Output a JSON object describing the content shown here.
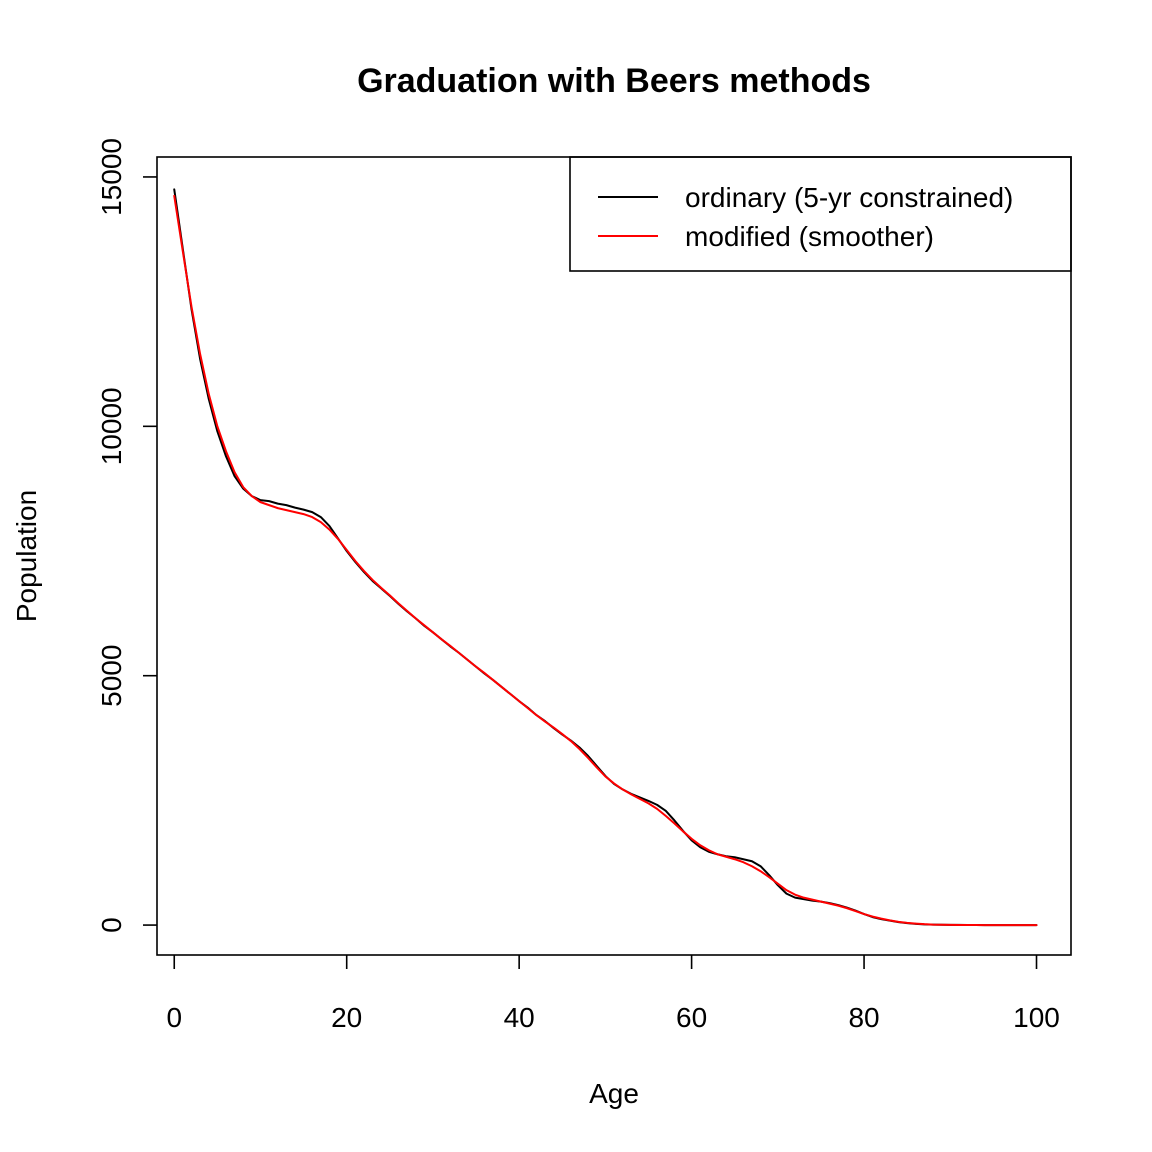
{
  "chart_data": {
    "type": "line",
    "title": "Graduation with Beers methods",
    "xlabel": "Age",
    "ylabel": "Population",
    "xlim": [
      -2,
      104
    ],
    "ylim": [
      -600,
      15400
    ],
    "xticks": [
      0,
      20,
      40,
      60,
      80,
      100
    ],
    "yticks": [
      0,
      5000,
      10000,
      15000
    ],
    "grid": false,
    "legend_position": "top-right",
    "series": [
      {
        "name": "ordinary (5-yr constrained)",
        "color": "#000000",
        "x": [
          0,
          1,
          2,
          3,
          4,
          5,
          6,
          7,
          8,
          9,
          10,
          11,
          12,
          13,
          14,
          15,
          16,
          17,
          18,
          19,
          20,
          21,
          22,
          23,
          24,
          25,
          26,
          27,
          28,
          29,
          30,
          31,
          32,
          33,
          34,
          35,
          36,
          37,
          38,
          39,
          40,
          41,
          42,
          43,
          44,
          45,
          46,
          47,
          48,
          49,
          50,
          51,
          52,
          53,
          54,
          55,
          56,
          57,
          58,
          59,
          60,
          61,
          62,
          63,
          64,
          65,
          66,
          67,
          68,
          69,
          70,
          71,
          72,
          73,
          74,
          75,
          76,
          77,
          78,
          79,
          80,
          81,
          82,
          83,
          84,
          85,
          86,
          87,
          88,
          89,
          90,
          91,
          92,
          93,
          94,
          95,
          96,
          97,
          98,
          99,
          100
        ],
        "values": [
          14750,
          13550,
          12350,
          11350,
          10550,
          9900,
          9400,
          9000,
          8750,
          8600,
          8520,
          8500,
          8450,
          8420,
          8370,
          8330,
          8280,
          8180,
          8000,
          7750,
          7500,
          7280,
          7080,
          6900,
          6750,
          6600,
          6440,
          6290,
          6150,
          6000,
          5870,
          5730,
          5590,
          5460,
          5320,
          5180,
          5040,
          4910,
          4770,
          4630,
          4490,
          4360,
          4210,
          4090,
          3950,
          3820,
          3700,
          3560,
          3390,
          3190,
          2990,
          2830,
          2720,
          2630,
          2560,
          2490,
          2410,
          2290,
          2100,
          1890,
          1700,
          1560,
          1470,
          1420,
          1380,
          1360,
          1320,
          1280,
          1180,
          1000,
          800,
          630,
          550,
          520,
          490,
          470,
          440,
          400,
          350,
          290,
          220,
          160,
          120,
          90,
          60,
          40,
          25,
          15,
          10,
          7,
          5,
          3,
          2,
          1,
          0,
          0,
          0,
          0,
          0,
          0,
          0
        ]
      },
      {
        "name": "modified (smoother)",
        "color": "#ff0000",
        "x": [
          0,
          1,
          2,
          3,
          4,
          5,
          6,
          7,
          8,
          9,
          10,
          11,
          12,
          13,
          14,
          15,
          16,
          17,
          18,
          19,
          20,
          21,
          22,
          23,
          24,
          25,
          26,
          27,
          28,
          29,
          30,
          31,
          32,
          33,
          34,
          35,
          36,
          37,
          38,
          39,
          40,
          41,
          42,
          43,
          44,
          45,
          46,
          47,
          48,
          49,
          50,
          51,
          52,
          53,
          54,
          55,
          56,
          57,
          58,
          59,
          60,
          61,
          62,
          63,
          64,
          65,
          66,
          67,
          68,
          69,
          70,
          71,
          72,
          73,
          74,
          75,
          76,
          77,
          78,
          79,
          80,
          81,
          82,
          83,
          84,
          85,
          86,
          87,
          88,
          89,
          90,
          91,
          92,
          93,
          94,
          95,
          96,
          97,
          98,
          99,
          100
        ],
        "values": [
          14620,
          13500,
          12400,
          11450,
          10650,
          10000,
          9500,
          9080,
          8780,
          8600,
          8480,
          8420,
          8360,
          8320,
          8280,
          8240,
          8180,
          8080,
          7930,
          7740,
          7520,
          7300,
          7100,
          6920,
          6760,
          6610,
          6450,
          6300,
          6150,
          6010,
          5870,
          5730,
          5600,
          5460,
          5320,
          5180,
          5050,
          4910,
          4770,
          4630,
          4490,
          4350,
          4210,
          4080,
          3960,
          3830,
          3690,
          3530,
          3350,
          3160,
          2980,
          2840,
          2720,
          2620,
          2530,
          2440,
          2330,
          2190,
          2040,
          1880,
          1730,
          1600,
          1500,
          1420,
          1370,
          1320,
          1260,
          1180,
          1080,
          960,
          830,
          700,
          610,
          550,
          510,
          470,
          430,
          390,
          340,
          280,
          220,
          170,
          130,
          95,
          65,
          45,
          30,
          18,
          10,
          6,
          4,
          2,
          1,
          1,
          0,
          0,
          0,
          0,
          0,
          0,
          0
        ]
      }
    ]
  }
}
